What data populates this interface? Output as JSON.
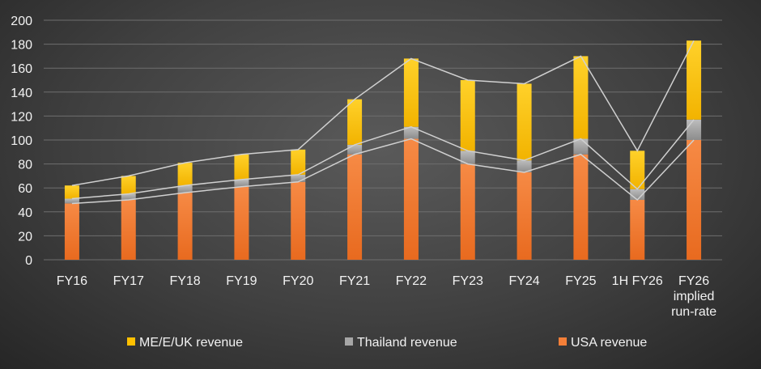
{
  "chart_data": {
    "type": "bar",
    "stacked": true,
    "categories": [
      "FY16",
      "FY17",
      "FY18",
      "FY19",
      "FY20",
      "FY21",
      "FY22",
      "FY23",
      "FY24",
      "FY25",
      "1H FY26",
      "FY26 implied run-rate"
    ],
    "series": [
      {
        "name": "USA revenue",
        "color": "#f47f38",
        "values": [
          47,
          50,
          56,
          61,
          65,
          88,
          101,
          80,
          73,
          88,
          50,
          100
        ]
      },
      {
        "name": "Thailand revenue",
        "color": "#a6a6a6",
        "values": [
          4,
          5,
          6,
          6,
          6,
          8,
          10,
          11,
          10,
          13,
          9,
          17
        ]
      },
      {
        "name": "ME/E/UK revenue",
        "color": "#ffc000",
        "values": [
          11,
          15,
          19,
          21,
          21,
          38,
          57,
          59,
          64,
          69,
          32,
          66
        ]
      }
    ],
    "ylim": [
      0,
      200
    ],
    "yticks": [
      0,
      20,
      40,
      60,
      80,
      100,
      120,
      140,
      160,
      180,
      200
    ],
    "grid": true,
    "legend": "bottom",
    "legend_order": [
      "ME/E/UK revenue",
      "Thailand revenue",
      "USA revenue"
    ],
    "cumulative_lines": true
  }
}
